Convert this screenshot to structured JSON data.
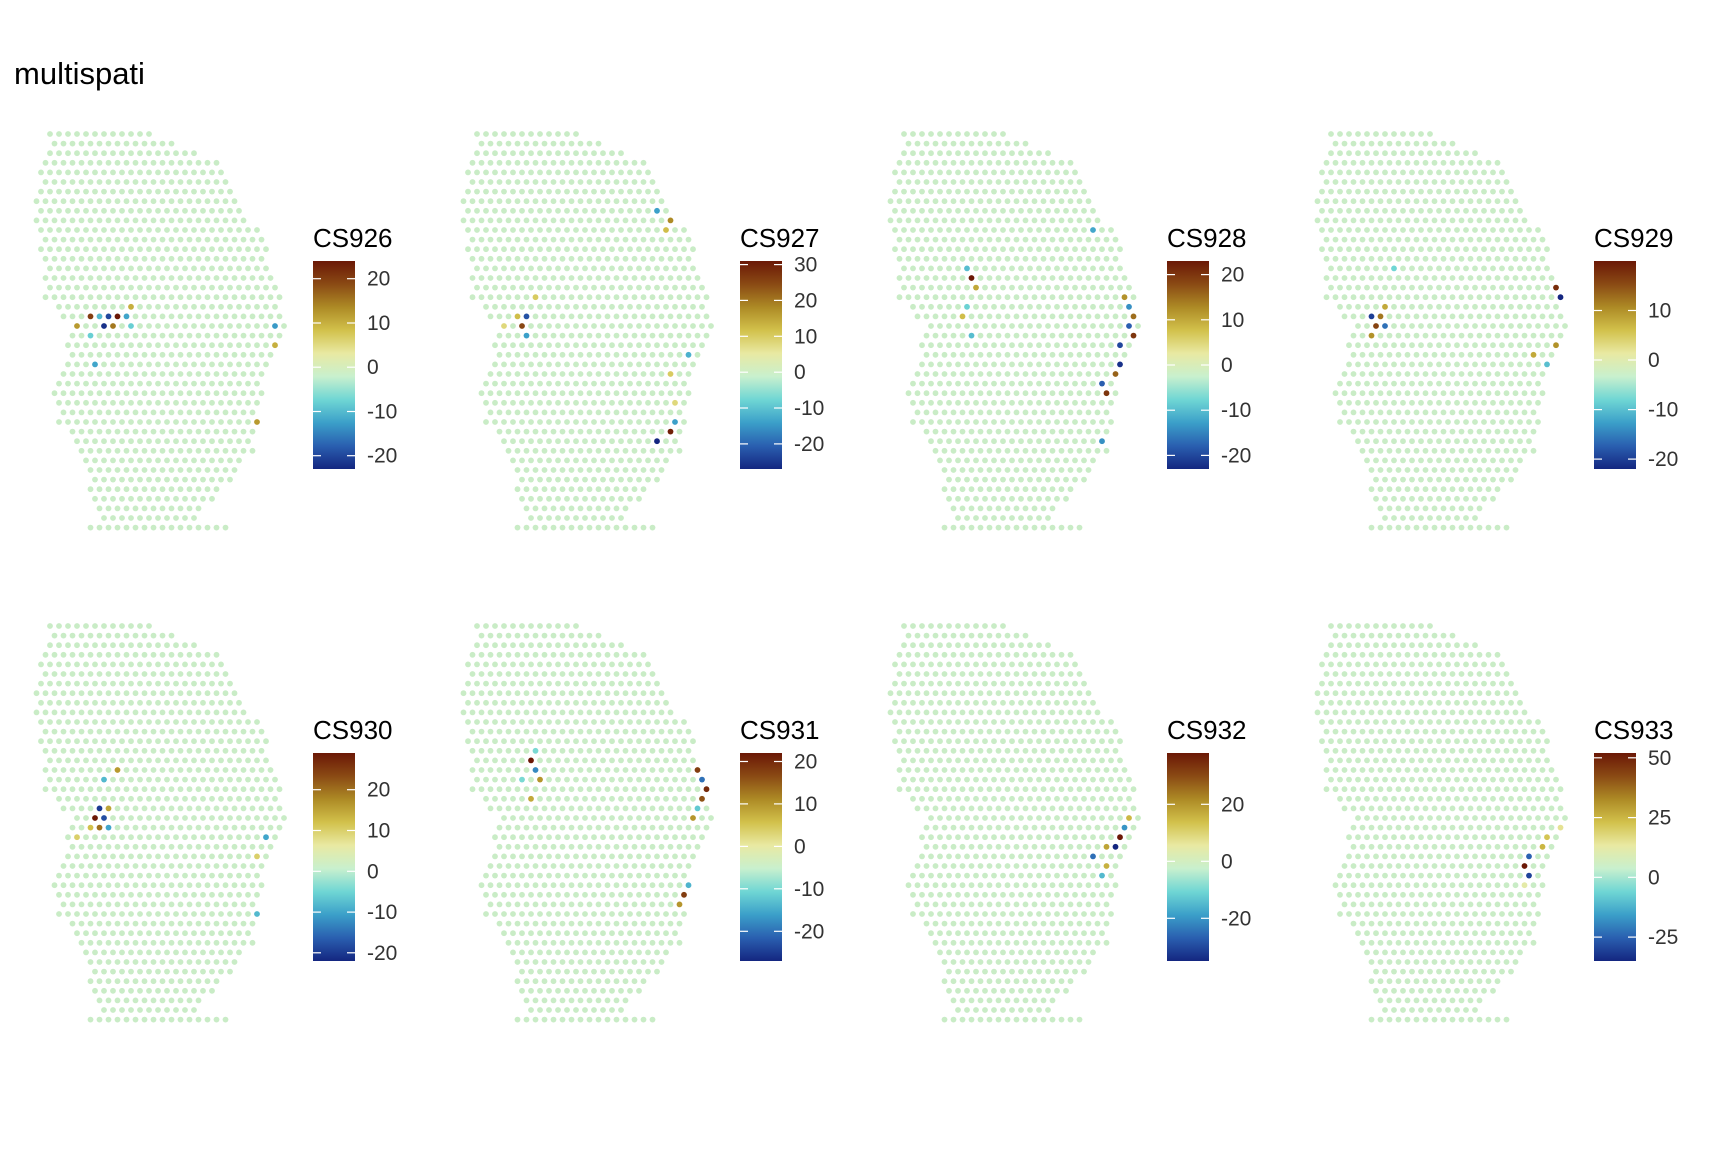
{
  "title": "multispati",
  "colors": {
    "background": "#ffffff",
    "spot_neutral": "#c9ecc6",
    "scale": [
      "#142680",
      "#2a5fb0",
      "#3b9fc9",
      "#6fd6d4",
      "#c8f0ce",
      "#e9e9a2",
      "#d2c14b",
      "#ad8a25",
      "#8a4a14",
      "#6b1806"
    ]
  },
  "chart_data": [
    {
      "type": "scatter",
      "component": "CS926",
      "legend_title": "CS926",
      "color_range": [
        -23,
        24
      ],
      "legend_ticks": [
        20,
        10,
        0,
        -10,
        -20
      ],
      "hotspots": [
        {
          "col": 6,
          "row": 19,
          "value": 20
        },
        {
          "col": 7,
          "row": 19,
          "value": -10
        },
        {
          "col": 8,
          "row": 19,
          "value": -20
        },
        {
          "col": 9,
          "row": 19,
          "value": 24
        },
        {
          "col": 8,
          "row": 20,
          "value": -22
        },
        {
          "col": 9,
          "row": 20,
          "value": 15
        },
        {
          "col": 10,
          "row": 19,
          "value": -12
        },
        {
          "col": 11,
          "row": 18,
          "value": 10
        },
        {
          "col": 6,
          "row": 21,
          "value": -8
        },
        {
          "col": 5,
          "row": 20,
          "value": 12
        },
        {
          "col": 25,
          "row": 8,
          "value": 16
        },
        {
          "col": 25,
          "row": 9,
          "value": -12
        },
        {
          "col": 27,
          "row": 20,
          "value": -13
        },
        {
          "col": 27,
          "row": 22,
          "value": 10
        },
        {
          "col": 26,
          "row": 29,
          "value": -12
        },
        {
          "col": 25,
          "row": 30,
          "value": 12
        },
        {
          "col": 25,
          "row": 31,
          "value": -10
        },
        {
          "col": 25,
          "row": 35,
          "value": -9
        },
        {
          "col": 7,
          "row": 24,
          "value": -12
        },
        {
          "col": 11,
          "row": 20,
          "value": -8
        }
      ]
    },
    {
      "type": "scatter",
      "component": "CS927",
      "legend_title": "CS927",
      "color_range": [
        -27,
        31
      ],
      "legend_ticks": [
        30,
        20,
        10,
        0,
        -10,
        -20
      ],
      "hotspots": [
        {
          "col": 6,
          "row": 19,
          "value": 12
        },
        {
          "col": 7,
          "row": 19,
          "value": -22
        },
        {
          "col": 7,
          "row": 20,
          "value": 25
        },
        {
          "col": 7,
          "row": 21,
          "value": -14
        },
        {
          "col": 5,
          "row": 20,
          "value": 8
        },
        {
          "col": 8,
          "row": 17,
          "value": 10
        },
        {
          "col": 22,
          "row": 8,
          "value": -14
        },
        {
          "col": 23,
          "row": 9,
          "value": 18
        },
        {
          "col": 23,
          "row": 10,
          "value": 12
        },
        {
          "col": 25,
          "row": 23,
          "value": -12
        },
        {
          "col": 23,
          "row": 25,
          "value": 10
        },
        {
          "col": 24,
          "row": 30,
          "value": -14
        },
        {
          "col": 23,
          "row": 31,
          "value": 30
        },
        {
          "col": 22,
          "row": 32,
          "value": -27
        },
        {
          "col": 24,
          "row": 28,
          "value": 8
        }
      ]
    },
    {
      "type": "scatter",
      "component": "CS928",
      "legend_title": "CS928",
      "color_range": [
        -23,
        23
      ],
      "legend_ticks": [
        20,
        10,
        0,
        -10,
        -20
      ],
      "hotspots": [
        {
          "col": 9,
          "row": 15,
          "value": 23
        },
        {
          "col": 9,
          "row": 14,
          "value": -10
        },
        {
          "col": 10,
          "row": 16,
          "value": 10
        },
        {
          "col": 9,
          "row": 18,
          "value": -8
        },
        {
          "col": 8,
          "row": 19,
          "value": 8
        },
        {
          "col": 9,
          "row": 21,
          "value": -10
        },
        {
          "col": 26,
          "row": 17,
          "value": 12
        },
        {
          "col": 27,
          "row": 18,
          "value": -14
        },
        {
          "col": 27,
          "row": 19,
          "value": 15
        },
        {
          "col": 27,
          "row": 20,
          "value": -18
        },
        {
          "col": 27,
          "row": 21,
          "value": 20
        },
        {
          "col": 26,
          "row": 22,
          "value": -20
        },
        {
          "col": 27,
          "row": 23,
          "value": 18
        },
        {
          "col": 26,
          "row": 24,
          "value": -22
        },
        {
          "col": 25,
          "row": 25,
          "value": 16
        },
        {
          "col": 24,
          "row": 26,
          "value": -18
        },
        {
          "col": 24,
          "row": 27,
          "value": 20
        },
        {
          "col": 23,
          "row": 10,
          "value": -12
        },
        {
          "col": 25,
          "row": 29,
          "value": 10
        },
        {
          "col": 24,
          "row": 32,
          "value": -14
        }
      ]
    },
    {
      "type": "scatter",
      "component": "CS929",
      "legend_title": "CS929",
      "color_range": [
        -22,
        20
      ],
      "legend_ticks": [
        10,
        0,
        -10,
        -20
      ],
      "hotspots": [
        {
          "col": 22,
          "row": 3,
          "value": -10
        },
        {
          "col": 23,
          "row": 4,
          "value": 16
        },
        {
          "col": 23,
          "row": 5,
          "value": -20
        },
        {
          "col": 24,
          "row": 6,
          "value": -18
        },
        {
          "col": 24,
          "row": 7,
          "value": -14
        },
        {
          "col": 25,
          "row": 8,
          "value": 12
        },
        {
          "col": 25,
          "row": 9,
          "value": -16
        },
        {
          "col": 26,
          "row": 10,
          "value": 10
        },
        {
          "col": 27,
          "row": 16,
          "value": 18
        },
        {
          "col": 27,
          "row": 17,
          "value": -22
        },
        {
          "col": 28,
          "row": 18,
          "value": 20
        },
        {
          "col": 28,
          "row": 21,
          "value": -12
        },
        {
          "col": 27,
          "row": 22,
          "value": 10
        },
        {
          "col": 26,
          "row": 24,
          "value": -10
        },
        {
          "col": 6,
          "row": 19,
          "value": -20
        },
        {
          "col": 7,
          "row": 19,
          "value": 12
        },
        {
          "col": 7,
          "row": 20,
          "value": 16
        },
        {
          "col": 8,
          "row": 20,
          "value": -16
        },
        {
          "col": 6,
          "row": 21,
          "value": 10
        },
        {
          "col": 8,
          "row": 18,
          "value": 8
        },
        {
          "col": 9,
          "row": 14,
          "value": -8
        },
        {
          "col": 24,
          "row": 23,
          "value": 8
        }
      ]
    },
    {
      "type": "scatter",
      "component": "CS930",
      "legend_title": "CS930",
      "color_range": [
        -22,
        29
      ],
      "legend_ticks": [
        20,
        10,
        0,
        -10,
        -20
      ],
      "hotspots": [
        {
          "col": 7,
          "row": 19,
          "value": -20
        },
        {
          "col": 7,
          "row": 20,
          "value": 29
        },
        {
          "col": 8,
          "row": 20,
          "value": -18
        },
        {
          "col": 8,
          "row": 19,
          "value": 15
        },
        {
          "col": 6,
          "row": 21,
          "value": 12
        },
        {
          "col": 7,
          "row": 21,
          "value": 20
        },
        {
          "col": 8,
          "row": 21,
          "value": -10
        },
        {
          "col": 5,
          "row": 22,
          "value": 10
        },
        {
          "col": 8,
          "row": 16,
          "value": -8
        },
        {
          "col": 9,
          "row": 15,
          "value": 16
        },
        {
          "col": 23,
          "row": 5,
          "value": 12
        },
        {
          "col": 23,
          "row": 6,
          "value": -12
        },
        {
          "col": 24,
          "row": 7,
          "value": -10
        },
        {
          "col": 24,
          "row": 8,
          "value": 10
        },
        {
          "col": 24,
          "row": 9,
          "value": 8
        },
        {
          "col": 26,
          "row": 22,
          "value": -10
        },
        {
          "col": 25,
          "row": 24,
          "value": 10
        },
        {
          "col": 25,
          "row": 30,
          "value": -8
        }
      ]
    },
    {
      "type": "scatter",
      "component": "CS931",
      "legend_title": "CS931",
      "color_range": [
        -27,
        22
      ],
      "legend_ticks": [
        20,
        10,
        0,
        -10,
        -20
      ],
      "hotspots": [
        {
          "col": 22,
          "row": 5,
          "value": 14
        },
        {
          "col": 23,
          "row": 6,
          "value": 22
        },
        {
          "col": 23,
          "row": 7,
          "value": -27
        },
        {
          "col": 24,
          "row": 8,
          "value": 16
        },
        {
          "col": 24,
          "row": 9,
          "value": 10
        },
        {
          "col": 26,
          "row": 15,
          "value": 18
        },
        {
          "col": 27,
          "row": 16,
          "value": -20
        },
        {
          "col": 27,
          "row": 17,
          "value": 20
        },
        {
          "col": 27,
          "row": 18,
          "value": 16
        },
        {
          "col": 26,
          "row": 19,
          "value": -12
        },
        {
          "col": 26,
          "row": 20,
          "value": 10
        },
        {
          "col": 25,
          "row": 27,
          "value": -14
        },
        {
          "col": 25,
          "row": 28,
          "value": 18
        },
        {
          "col": 24,
          "row": 29,
          "value": 10
        },
        {
          "col": 8,
          "row": 13,
          "value": -10
        },
        {
          "col": 8,
          "row": 14,
          "value": 22
        },
        {
          "col": 8,
          "row": 15,
          "value": -18
        },
        {
          "col": 9,
          "row": 16,
          "value": 10
        },
        {
          "col": 7,
          "row": 16,
          "value": -10
        },
        {
          "col": 8,
          "row": 18,
          "value": 8
        }
      ]
    },
    {
      "type": "scatter",
      "component": "CS932",
      "legend_title": "CS932",
      "color_range": [
        -35,
        38
      ],
      "legend_ticks": [
        20,
        0,
        -20
      ],
      "hotspots": [
        {
          "col": 27,
          "row": 20,
          "value": 15
        },
        {
          "col": 26,
          "row": 21,
          "value": -20
        },
        {
          "col": 26,
          "row": 22,
          "value": 38
        },
        {
          "col": 25,
          "row": 23,
          "value": -35
        },
        {
          "col": 24,
          "row": 23,
          "value": 18
        },
        {
          "col": 23,
          "row": 24,
          "value": -25
        },
        {
          "col": 24,
          "row": 25,
          "value": 16
        },
        {
          "col": 24,
          "row": 26,
          "value": -15
        }
      ]
    },
    {
      "type": "scatter",
      "component": "CS933",
      "legend_title": "CS933",
      "color_range": [
        -35,
        52
      ],
      "legend_ticks": [
        50,
        25,
        0,
        -25
      ],
      "hotspots": [
        {
          "col": 27,
          "row": 21,
          "value": 15
        },
        {
          "col": 26,
          "row": 22,
          "value": 22
        },
        {
          "col": 25,
          "row": 23,
          "value": 25
        },
        {
          "col": 24,
          "row": 24,
          "value": -25
        },
        {
          "col": 23,
          "row": 25,
          "value": 52
        },
        {
          "col": 24,
          "row": 26,
          "value": -30
        },
        {
          "col": 23,
          "row": 27,
          "value": 12
        }
      ]
    }
  ]
}
